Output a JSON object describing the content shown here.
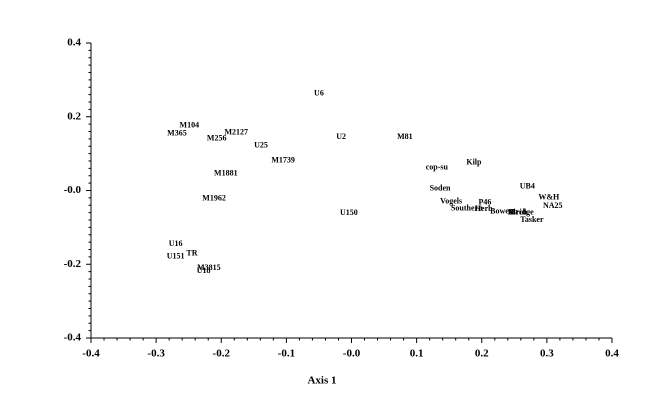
{
  "chart_data": {
    "type": "scatter",
    "xlabel": "Axis 1",
    "xlim": [
      -0.4,
      0.4
    ],
    "ylim": [
      -0.4,
      0.4
    ],
    "xticks": [
      -0.4,
      -0.3,
      -0.2,
      -0.1,
      {
        "value": 0,
        "label": "-0.0"
      },
      0.1,
      0.2,
      0.3,
      0.4
    ],
    "yticks": [
      -0.4,
      -0.2,
      {
        "value": 0,
        "label": "-0.0"
      },
      0.2,
      0.4
    ],
    "labels": [
      "U6",
      "M104",
      "M365",
      "M256",
      "M2127",
      "U25",
      "U2",
      "M81",
      "M1739",
      "Kilp",
      "cop-su",
      "M1881",
      "Soden",
      "UB4",
      "W&H",
      "M1962",
      "Vogels",
      "P46",
      "NA25",
      "Southern",
      "Herb",
      "Bower",
      "Mt",
      "Birch",
      "Bridge",
      "U150",
      "Tasker",
      "U16",
      "TR",
      "U151",
      "M3815",
      "U18"
    ],
    "x": [
      -0.05,
      -0.249,
      -0.268,
      -0.207,
      -0.177,
      -0.139,
      -0.016,
      0.082,
      -0.105,
      0.188,
      0.131,
      -0.193,
      0.136,
      0.27,
      0.303,
      -0.211,
      0.153,
      0.205,
      0.309,
      0.177,
      0.203,
      0.23,
      0.248,
      0.255,
      0.262,
      -0.004,
      0.277,
      -0.27,
      -0.245,
      -0.27,
      -0.219,
      -0.227
    ],
    "values": [
      0.263,
      0.176,
      0.154,
      0.141,
      0.157,
      0.122,
      0.144,
      0.144,
      0.081,
      0.076,
      0.062,
      0.046,
      0.005,
      0.011,
      -0.019,
      -0.022,
      -0.03,
      -0.033,
      -0.043,
      -0.049,
      -0.051,
      -0.057,
      -0.06,
      -0.06,
      -0.06,
      -0.062,
      -0.081,
      -0.146,
      -0.171,
      -0.179,
      -0.211,
      -0.219
    ],
    "color": "#000000"
  }
}
